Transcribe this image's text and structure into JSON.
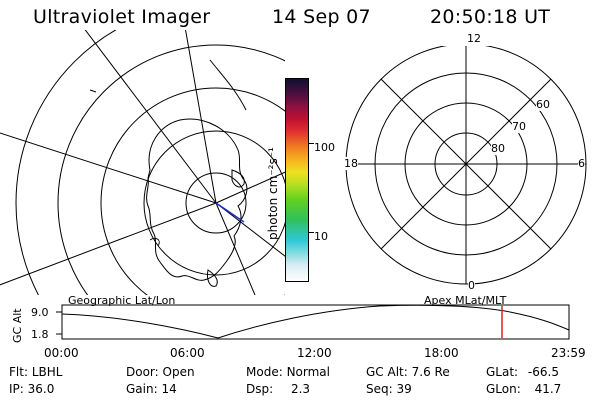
{
  "header": {
    "instrument": "Ultraviolet Imager",
    "date": "14 Sep 07",
    "time": "20:50:18 UT"
  },
  "colorbar": {
    "unit_label": "photon cm⁻²s⁻¹",
    "ticks": [
      "100",
      "10"
    ]
  },
  "polar_plot": {
    "mlt_labels": {
      "top": "12",
      "left": "18",
      "right": "6",
      "bottom": "0"
    },
    "lat_labels": [
      "60",
      "70",
      "80"
    ]
  },
  "map_labels": {
    "left": "Geographic Lat/Lon",
    "right": "Apex MLat/MLT"
  },
  "timeline": {
    "ylabel": "GC Alt",
    "ymax": "9.0",
    "ymin": "1.8",
    "times": [
      "00:00",
      "06:00",
      "12:00",
      "18:00",
      "23:59"
    ],
    "current_time_marker": "20:50",
    "marker_color": "#e02020"
  },
  "status": {
    "row1": [
      {
        "label": "Flt:",
        "value": "LBHL"
      },
      {
        "label": "Door:",
        "value": "Open"
      },
      {
        "label": "Mode:",
        "value": "Normal"
      },
      {
        "label": "GC Alt:",
        "value": "7.6 Re"
      },
      {
        "label": "GLat:",
        "value": "-66.5"
      }
    ],
    "row2": [
      {
        "label": "IP:",
        "value": "36.0"
      },
      {
        "label": "Gain:",
        "value": "14"
      },
      {
        "label": "Dsp:",
        "value": "2.3"
      },
      {
        "label": "Seq:",
        "value": "39"
      },
      {
        "label": "GLon:",
        "value": "41.7"
      }
    ]
  }
}
